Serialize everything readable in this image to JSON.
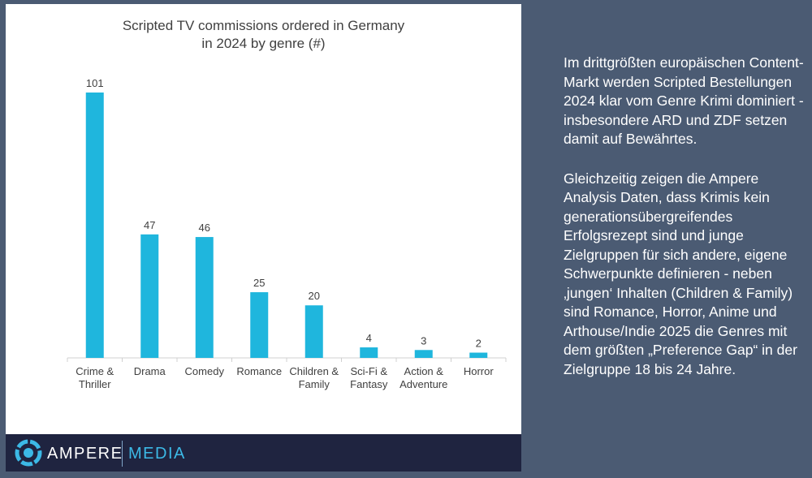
{
  "chart_data": {
    "type": "bar",
    "title": "Scripted TV commissions ordered in Germany\nin 2024 by genre (#)",
    "categories": [
      "Crime &\nThriller",
      "Drama",
      "Comedy",
      "Romance",
      "Children &\nFamily",
      "Sci-Fi &\nFantasy",
      "Action &\nAdventure",
      "Horror"
    ],
    "values": [
      101,
      47,
      46,
      25,
      20,
      4,
      3,
      2
    ],
    "ylim": [
      0,
      101
    ],
    "grid": false,
    "bar_color": "#1fb6dd"
  },
  "brand": {
    "name_a": "AMPERE",
    "name_b": "MEDIA"
  },
  "side_text": {
    "p1": "Im drittgrößten europäischen Content-Markt werden Scripted Bestellungen 2024 klar vom Genre Krimi dominiert - insbesondere ARD und ZDF setzen damit auf Bewährtes.",
    "p2": "Gleichzeitig zeigen die Ampere Analysis Daten, dass Krimis kein generationsübergreifendes Erfolgsrezept sind und junge Zielgruppen für sich andere, eigene Schwerpunkte definieren - neben ‚jungen‘ Inhalten (Children & Family) sind Romance, Horror, Anime und Arthouse/Indie 2025 die Genres mit dem größten „Preference Gap“ in der Zielgruppe 18 bis 24 Jahre."
  },
  "colors": {
    "background": "#4b5b73",
    "footer": "#1f2440",
    "accent": "#3cb9e6"
  }
}
